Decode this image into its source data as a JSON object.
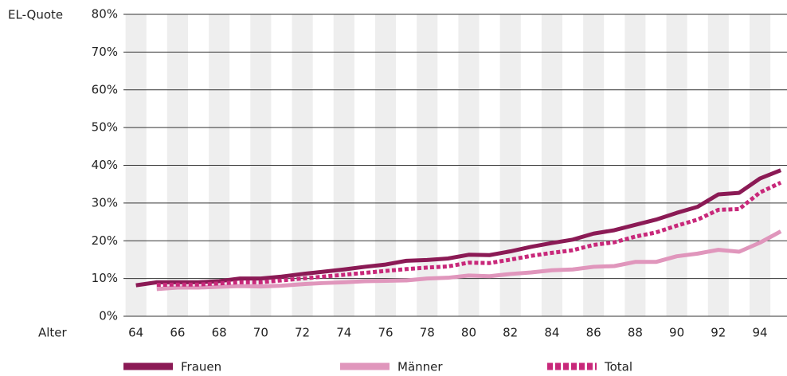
{
  "chart_data": {
    "type": "line",
    "y_label": "EL-Quote",
    "x_label": "Alter",
    "x": [
      64,
      65,
      66,
      67,
      68,
      69,
      70,
      71,
      72,
      73,
      74,
      75,
      76,
      77,
      78,
      79,
      80,
      81,
      82,
      83,
      84,
      85,
      86,
      87,
      88,
      89,
      90,
      91,
      92,
      93,
      94,
      95
    ],
    "series": [
      {
        "name": "Frauen",
        "color": "#8b1a55",
        "style": "solid",
        "values": [
          8.2,
          9,
          9,
          9,
          9.3,
          10,
          10,
          10.5,
          11.2,
          11.8,
          12.4,
          13.1,
          13.7,
          14.7,
          14.9,
          15.3,
          16.3,
          16.2,
          17.2,
          18.4,
          19.4,
          20.3,
          21.9,
          22.8,
          24.2,
          25.6,
          27.4,
          29,
          32.3,
          32.7,
          36.5,
          38.7
        ]
      },
      {
        "name": "Männer",
        "color": "#e096bc",
        "style": "solid",
        "values": [
          null,
          7.2,
          7.6,
          7.6,
          7.8,
          8,
          7.9,
          8.1,
          8.5,
          8.8,
          9,
          9.3,
          9.4,
          9.5,
          10,
          10.2,
          10.8,
          10.6,
          11.2,
          11.6,
          12.2,
          12.4,
          13.1,
          13.3,
          14.4,
          14.4,
          15.9,
          16.6,
          17.6,
          17.1,
          19.5,
          22.5
        ]
      },
      {
        "name": "Total",
        "color": "#c8287a",
        "style": "dashed",
        "values": [
          null,
          8.3,
          8.4,
          8.4,
          8.7,
          9,
          9,
          9.5,
          10,
          10.5,
          11,
          11.5,
          12,
          12.5,
          12.9,
          13.2,
          14.2,
          14.1,
          15,
          16,
          16.8,
          17.5,
          18.9,
          19.6,
          21.1,
          22.2,
          24,
          25.6,
          28.2,
          28.4,
          32.8,
          35.4
        ]
      }
    ],
    "xlim": [
      63.4,
      95.3
    ],
    "xticks": [
      64,
      66,
      68,
      70,
      72,
      74,
      76,
      78,
      80,
      82,
      84,
      86,
      88,
      90,
      92,
      94
    ],
    "ylim": [
      0,
      80
    ],
    "yticks": [
      {
        "value": 0,
        "label": "0%"
      },
      {
        "value": 10,
        "label": "10%"
      },
      {
        "value": 20,
        "label": "20%"
      },
      {
        "value": 30,
        "label": "30%"
      },
      {
        "value": 40,
        "label": "40%"
      },
      {
        "value": 50,
        "label": "50%"
      },
      {
        "value": 60,
        "label": "60%"
      },
      {
        "value": 70,
        "label": "70%"
      },
      {
        "value": 80,
        "label": "80%"
      }
    ],
    "grid": true,
    "legend": "bottom"
  }
}
